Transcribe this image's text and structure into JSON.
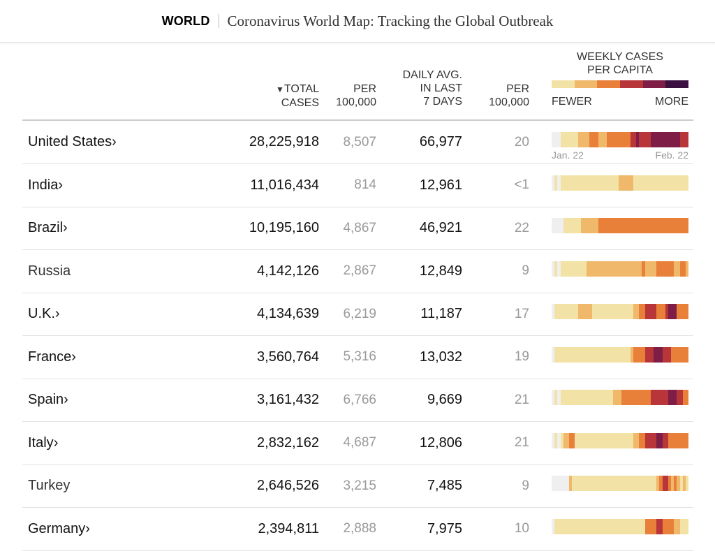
{
  "header": {
    "section": "WORLD",
    "title": "Coronavirus World Map: Tracking the Global Outbreak"
  },
  "columns": {
    "sort_arrow": "▼",
    "total_cases": [
      "TOTAL",
      "CASES"
    ],
    "per_100k": [
      "PER",
      "100,000"
    ],
    "daily_avg": [
      "DAILY AVG.",
      "IN LAST",
      "7 DAYS"
    ],
    "per_100k_daily": [
      "PER",
      "100,000"
    ]
  },
  "legend": {
    "title": [
      "WEEKLY CASES",
      "PER CAPITA"
    ],
    "fewer": "FEWER",
    "more": "MORE",
    "colors": [
      "#f3e2a6",
      "#f0b86a",
      "#e8803a",
      "#b8363a",
      "#7e1d46",
      "#3a1040"
    ]
  },
  "dates": {
    "start": "Jan. 22",
    "end": "Feb. 22"
  },
  "rows": [
    {
      "name": "United States",
      "chevron": " ›",
      "link": true,
      "total": "28,225,918",
      "per100k": "8,507",
      "daily": "66,977",
      "dailyPer100k": "20",
      "heat": "00011111122223332223333333344544445555555555444"
    },
    {
      "name": "India",
      "chevron": " ›",
      "link": true,
      "total": "11,016,434",
      "per100k": "814",
      "daily": "12,961",
      "dailyPer100k": "<1",
      "heat": "01011111111111111111111222221111111111111111111"
    },
    {
      "name": "Brazil",
      "chevron": " ›",
      "link": true,
      "total": "10,195,160",
      "per100k": "4,867",
      "daily": "46,921",
      "dailyPer100k": "22",
      "heat": "00001111112222223333333333333333333333333333333"
    },
    {
      "name": "Russia",
      "chevron": " ›",
      "link": false,
      "total": "4,142,126",
      "per100k": "2,867",
      "daily": "12,849",
      "dailyPer100k": "9",
      "heat": "01011111111122222222222222222223222233333322332"
    },
    {
      "name": "U.K.",
      "chevron": " ›",
      "link": true,
      "total": "4,134,639",
      "per100k": "6,219",
      "daily": "11,187",
      "dailyPer100k": "17",
      "heat": "01111111122222111111111111112233444433345553333"
    },
    {
      "name": "France",
      "chevron": " ›",
      "link": true,
      "total": "3,560,764",
      "per100k": "5,316",
      "daily": "13,032",
      "dailyPer100k": "19",
      "heat": "01111111111111111111111111123333444555444333333"
    },
    {
      "name": "Spain",
      "chevron": " ›",
      "link": true,
      "total": "3,161,432",
      "per100k": "6,766",
      "daily": "9,669",
      "dailyPer100k": "21",
      "heat": "01011111111111111111122233333333334444445554433"
    },
    {
      "name": "Italy",
      "chevron": " ›",
      "link": true,
      "total": "2,832,162",
      "per100k": "4,687",
      "daily": "12,806",
      "dailyPer100k": "21",
      "heat": "01012233111111111111111111112233444455443333333"
    },
    {
      "name": "Turkey",
      "chevron": " ›",
      "link": false,
      "total": "2,646,526",
      "per100k": "3,215",
      "daily": "7,485",
      "dailyPer100k": "9",
      "heat": "00000021111111111111111111111111111123443232121"
    },
    {
      "name": "Germany",
      "chevron": " ›",
      "link": true,
      "total": "2,394,811",
      "per100k": "2,888",
      "daily": "7,975",
      "dailyPer100k": "10",
      "heat": "01111111111111111111111111111111333344333322111"
    }
  ]
}
